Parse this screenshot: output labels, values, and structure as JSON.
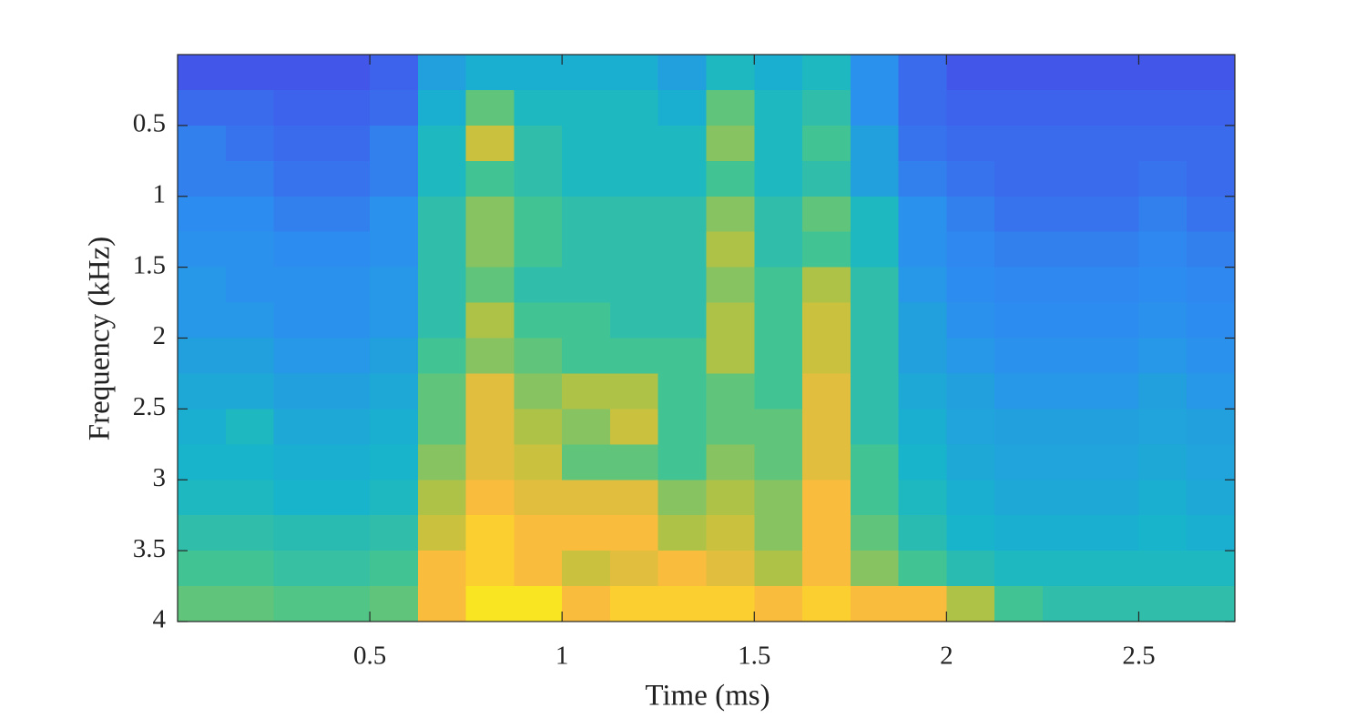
{
  "chart_data": {
    "type": "heatmap",
    "xlabel": "Time (ms)",
    "ylabel": "Frequency (kHz)",
    "xlim": [
      0,
      2.75
    ],
    "ylim": [
      0,
      4
    ],
    "y_reversed": true,
    "xticks": [
      0.5,
      1,
      1.5,
      2,
      2.5
    ],
    "yticks": [
      0.5,
      1,
      1.5,
      2,
      2.5,
      3,
      3.5,
      4
    ],
    "x_bins": [
      0,
      0.125,
      0.25,
      0.375,
      0.5,
      0.625,
      0.75,
      0.875,
      1,
      1.125,
      1.25,
      1.375,
      1.5,
      1.625,
      1.75,
      1.875,
      2,
      2.125,
      2.25,
      2.375,
      2.5,
      2.625,
      2.75
    ],
    "y_bins": [
      0,
      0.25,
      0.5,
      0.75,
      1,
      1.25,
      1.5,
      1.75,
      2,
      2.25,
      2.5,
      2.75,
      3,
      3.25,
      3.5,
      3.75,
      4
    ],
    "zlim": [
      0,
      1
    ],
    "colormap": [
      "#3e26a8",
      "#4353e9",
      "#2c8ef0",
      "#16b6c9",
      "#4ac58a",
      "#b9c240",
      "#fdbc3c",
      "#f9fb15"
    ],
    "z": [
      [
        0.15,
        0.15,
        0.15,
        0.15,
        0.18,
        0.35,
        0.4,
        0.4,
        0.4,
        0.4,
        0.35,
        0.45,
        0.4,
        0.45,
        0.3,
        0.2,
        0.15,
        0.15,
        0.15,
        0.15,
        0.15,
        0.15
      ],
      [
        0.2,
        0.2,
        0.18,
        0.18,
        0.2,
        0.4,
        0.6,
        0.45,
        0.45,
        0.45,
        0.4,
        0.6,
        0.45,
        0.5,
        0.3,
        0.2,
        0.18,
        0.18,
        0.18,
        0.18,
        0.18,
        0.18
      ],
      [
        0.25,
        0.22,
        0.2,
        0.2,
        0.25,
        0.45,
        0.75,
        0.5,
        0.45,
        0.45,
        0.45,
        0.65,
        0.45,
        0.55,
        0.35,
        0.22,
        0.2,
        0.2,
        0.2,
        0.2,
        0.2,
        0.2
      ],
      [
        0.25,
        0.25,
        0.22,
        0.22,
        0.25,
        0.45,
        0.55,
        0.5,
        0.45,
        0.45,
        0.45,
        0.55,
        0.45,
        0.5,
        0.35,
        0.25,
        0.22,
        0.2,
        0.2,
        0.2,
        0.22,
        0.2
      ],
      [
        0.28,
        0.28,
        0.25,
        0.25,
        0.3,
        0.5,
        0.65,
        0.55,
        0.5,
        0.5,
        0.5,
        0.65,
        0.5,
        0.6,
        0.45,
        0.3,
        0.25,
        0.22,
        0.22,
        0.22,
        0.25,
        0.22
      ],
      [
        0.3,
        0.3,
        0.28,
        0.28,
        0.3,
        0.5,
        0.65,
        0.55,
        0.5,
        0.5,
        0.5,
        0.7,
        0.5,
        0.55,
        0.45,
        0.3,
        0.27,
        0.25,
        0.25,
        0.25,
        0.27,
        0.25
      ],
      [
        0.32,
        0.3,
        0.3,
        0.3,
        0.32,
        0.5,
        0.6,
        0.5,
        0.5,
        0.5,
        0.5,
        0.65,
        0.55,
        0.7,
        0.5,
        0.32,
        0.28,
        0.27,
        0.27,
        0.27,
        0.28,
        0.27
      ],
      [
        0.32,
        0.32,
        0.3,
        0.3,
        0.32,
        0.5,
        0.7,
        0.55,
        0.55,
        0.5,
        0.5,
        0.7,
        0.55,
        0.75,
        0.5,
        0.35,
        0.3,
        0.28,
        0.28,
        0.28,
        0.3,
        0.28
      ],
      [
        0.35,
        0.35,
        0.32,
        0.32,
        0.35,
        0.55,
        0.65,
        0.6,
        0.55,
        0.55,
        0.55,
        0.7,
        0.55,
        0.75,
        0.5,
        0.35,
        0.32,
        0.3,
        0.3,
        0.3,
        0.32,
        0.3
      ],
      [
        0.38,
        0.38,
        0.35,
        0.35,
        0.38,
        0.6,
        0.8,
        0.65,
        0.7,
        0.7,
        0.55,
        0.6,
        0.55,
        0.8,
        0.5,
        0.38,
        0.35,
        0.32,
        0.32,
        0.32,
        0.35,
        0.32
      ],
      [
        0.4,
        0.45,
        0.38,
        0.38,
        0.4,
        0.6,
        0.8,
        0.7,
        0.65,
        0.75,
        0.55,
        0.6,
        0.6,
        0.8,
        0.5,
        0.4,
        0.36,
        0.35,
        0.35,
        0.35,
        0.36,
        0.35
      ],
      [
        0.42,
        0.42,
        0.4,
        0.4,
        0.42,
        0.65,
        0.8,
        0.75,
        0.6,
        0.6,
        0.55,
        0.65,
        0.6,
        0.8,
        0.55,
        0.42,
        0.38,
        0.36,
        0.36,
        0.36,
        0.38,
        0.36
      ],
      [
        0.45,
        0.45,
        0.42,
        0.42,
        0.45,
        0.7,
        0.85,
        0.8,
        0.8,
        0.8,
        0.65,
        0.7,
        0.65,
        0.85,
        0.55,
        0.45,
        0.4,
        0.38,
        0.38,
        0.38,
        0.4,
        0.38
      ],
      [
        0.5,
        0.5,
        0.48,
        0.48,
        0.5,
        0.75,
        0.9,
        0.85,
        0.85,
        0.85,
        0.7,
        0.75,
        0.65,
        0.85,
        0.6,
        0.48,
        0.42,
        0.4,
        0.4,
        0.4,
        0.42,
        0.4
      ],
      [
        0.55,
        0.55,
        0.52,
        0.52,
        0.55,
        0.85,
        0.9,
        0.85,
        0.75,
        0.8,
        0.85,
        0.8,
        0.7,
        0.85,
        0.65,
        0.55,
        0.48,
        0.45,
        0.45,
        0.45,
        0.45,
        0.45
      ],
      [
        0.6,
        0.6,
        0.58,
        0.58,
        0.6,
        0.85,
        0.95,
        0.95,
        0.85,
        0.9,
        0.9,
        0.9,
        0.85,
        0.9,
        0.85,
        0.85,
        0.7,
        0.55,
        0.5,
        0.5,
        0.5,
        0.5
      ]
    ]
  }
}
